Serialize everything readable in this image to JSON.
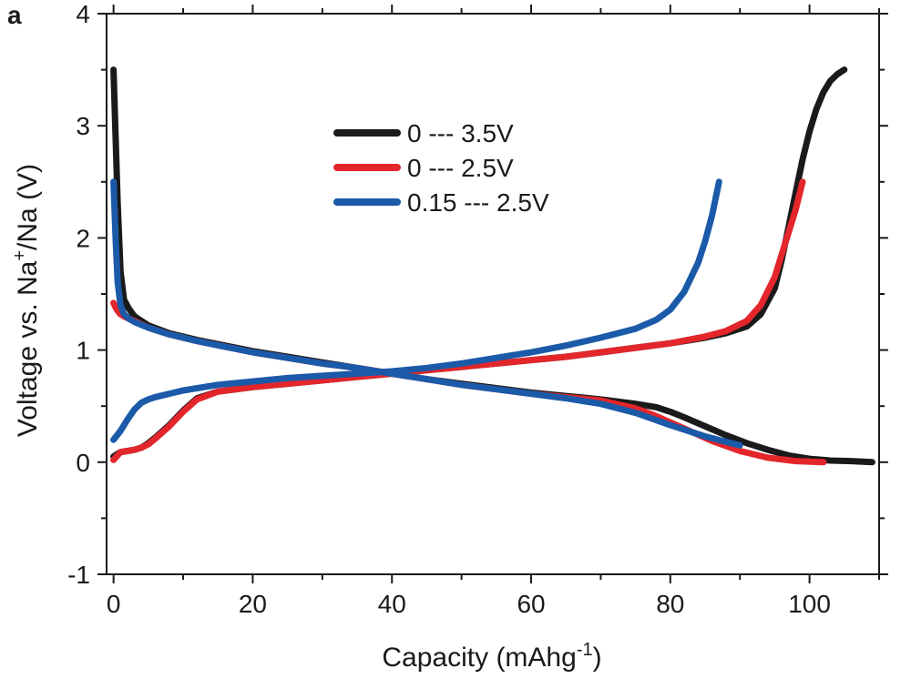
{
  "chart_data": {
    "type": "line",
    "panel_label": "a",
    "title": "",
    "xlabel": "Capacity (mAhg",
    "xlabel_sup": "-1",
    "xlabel_end": ")",
    "ylabel": "Voltage vs. Na",
    "ylabel_sup": "+",
    "ylabel_end": "/Na (V)",
    "xlim": [
      -1,
      110
    ],
    "ylim": [
      -1,
      4
    ],
    "x_ticks": [
      0,
      20,
      40,
      60,
      80,
      100
    ],
    "y_ticks": [
      -1,
      0,
      1,
      2,
      3,
      4
    ],
    "grid": false,
    "legend_position": "top-center",
    "series": [
      {
        "name": "0 --- 3.5V",
        "color": "#1a1a1a",
        "discharge": {
          "x": [
            0,
            0.3,
            0.6,
            1,
            1.5,
            2.2,
            3,
            5,
            8,
            12,
            16,
            20,
            25,
            30,
            35,
            40,
            45,
            50,
            55,
            60,
            65,
            70,
            75,
            78,
            80,
            82,
            85,
            88,
            91,
            94,
            97,
            100,
            103,
            106,
            109
          ],
          "y": [
            3.5,
            2.9,
            2.3,
            1.7,
            1.45,
            1.37,
            1.3,
            1.22,
            1.15,
            1.09,
            1.04,
            0.99,
            0.94,
            0.89,
            0.84,
            0.79,
            0.74,
            0.7,
            0.66,
            0.62,
            0.59,
            0.56,
            0.52,
            0.49,
            0.45,
            0.4,
            0.32,
            0.24,
            0.17,
            0.11,
            0.06,
            0.03,
            0.015,
            0.01,
            0.0
          ]
        },
        "charge": {
          "x": [
            0,
            1,
            2,
            3,
            4,
            5,
            6,
            8,
            10,
            12,
            15,
            20,
            25,
            30,
            35,
            40,
            45,
            50,
            55,
            60,
            65,
            70,
            75,
            80,
            85,
            88,
            91,
            93,
            95,
            96,
            97,
            98,
            99,
            100,
            101,
            102,
            103,
            104,
            105
          ],
          "y": [
            0.05,
            0.09,
            0.1,
            0.11,
            0.13,
            0.17,
            0.22,
            0.33,
            0.46,
            0.57,
            0.63,
            0.67,
            0.7,
            0.73,
            0.76,
            0.79,
            0.82,
            0.85,
            0.88,
            0.91,
            0.94,
            0.98,
            1.02,
            1.06,
            1.11,
            1.15,
            1.21,
            1.32,
            1.55,
            1.8,
            2.1,
            2.4,
            2.7,
            2.95,
            3.15,
            3.3,
            3.4,
            3.46,
            3.5
          ]
        }
      },
      {
        "name": "0 --- 2.5V",
        "color": "#e3262b",
        "discharge": {
          "x": [
            0,
            0.3,
            0.6,
            1,
            1.5,
            2.2,
            3,
            5,
            8,
            12,
            16,
            20,
            25,
            30,
            35,
            40,
            45,
            50,
            55,
            60,
            65,
            70,
            75,
            78,
            82,
            86,
            90,
            94,
            98,
            102
          ],
          "y": [
            1.42,
            1.38,
            1.35,
            1.32,
            1.3,
            1.28,
            1.26,
            1.2,
            1.14,
            1.08,
            1.03,
            0.98,
            0.93,
            0.88,
            0.84,
            0.79,
            0.74,
            0.69,
            0.65,
            0.61,
            0.58,
            0.55,
            0.48,
            0.41,
            0.3,
            0.19,
            0.1,
            0.04,
            0.01,
            0.0
          ]
        },
        "charge": {
          "x": [
            0,
            1,
            2,
            3,
            4,
            5,
            6,
            8,
            10,
            12,
            15,
            20,
            25,
            30,
            35,
            40,
            45,
            50,
            55,
            60,
            65,
            70,
            75,
            80,
            85,
            88,
            91,
            93,
            95,
            96,
            97,
            98,
            99
          ],
          "y": [
            0.02,
            0.09,
            0.1,
            0.11,
            0.13,
            0.16,
            0.21,
            0.32,
            0.45,
            0.56,
            0.63,
            0.67,
            0.7,
            0.73,
            0.76,
            0.79,
            0.82,
            0.85,
            0.88,
            0.91,
            0.94,
            0.98,
            1.02,
            1.06,
            1.12,
            1.17,
            1.26,
            1.4,
            1.65,
            1.85,
            2.05,
            2.25,
            2.5
          ]
        }
      },
      {
        "name": "0.15 --- 2.5V",
        "color": "#1b5aa8",
        "discharge": {
          "x": [
            0,
            0.3,
            0.6,
            1,
            1.5,
            2.2,
            3,
            5,
            8,
            12,
            16,
            20,
            25,
            30,
            35,
            40,
            45,
            50,
            55,
            60,
            65,
            70,
            75,
            80,
            85,
            90
          ],
          "y": [
            2.5,
            2.0,
            1.6,
            1.4,
            1.32,
            1.28,
            1.25,
            1.2,
            1.14,
            1.08,
            1.03,
            0.98,
            0.93,
            0.88,
            0.84,
            0.79,
            0.74,
            0.69,
            0.65,
            0.61,
            0.57,
            0.52,
            0.44,
            0.33,
            0.23,
            0.15
          ]
        },
        "charge": {
          "x": [
            0,
            1,
            2,
            3,
            4,
            5,
            6,
            8,
            10,
            15,
            20,
            25,
            30,
            35,
            40,
            45,
            50,
            55,
            60,
            65,
            70,
            75,
            78,
            80,
            82,
            84,
            85,
            86,
            87
          ],
          "y": [
            0.2,
            0.28,
            0.38,
            0.47,
            0.53,
            0.56,
            0.58,
            0.61,
            0.64,
            0.69,
            0.72,
            0.75,
            0.77,
            0.79,
            0.81,
            0.84,
            0.88,
            0.93,
            0.98,
            1.04,
            1.11,
            1.19,
            1.27,
            1.36,
            1.52,
            1.78,
            1.97,
            2.2,
            2.5
          ]
        }
      }
    ]
  }
}
